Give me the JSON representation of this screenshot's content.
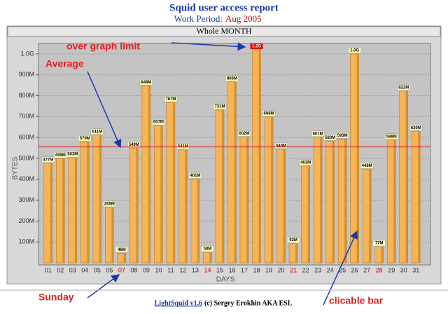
{
  "header": {
    "title": "Squid user access report",
    "period_label": "Work Period:",
    "period": "Aug 2005"
  },
  "footer": {
    "link": "LightSquid v1.6",
    "credit": "(c) Sergey Erokhin AKA ESL"
  },
  "annotations": {
    "over_limit": "over graph limit",
    "average": "Average",
    "sunday": "Sunday",
    "clickable": "clicable bar"
  },
  "chart_data": {
    "type": "bar",
    "title": "Whole MONTH",
    "x_label": "DAYS",
    "y_label": "BYTES",
    "color": "#f5b556",
    "sunday_color": "#cc0000",
    "sunday_indices": [
      6,
      13,
      20,
      27
    ],
    "average": 555,
    "average_color": "#e03030",
    "categories": [
      "01",
      "02",
      "03",
      "04",
      "05",
      "06",
      "07",
      "08",
      "09",
      "10",
      "11",
      "12",
      "13",
      "14",
      "15",
      "16",
      "17",
      "18",
      "19",
      "20",
      "21",
      "22",
      "23",
      "24",
      "25",
      "26",
      "27",
      "28",
      "29",
      "30",
      "31"
    ],
    "values": [
      477,
      499,
      503,
      579,
      611,
      265,
      46,
      549,
      848,
      657,
      767,
      541,
      401,
      50,
      731,
      866,
      602,
      1200,
      698,
      544,
      92,
      463,
      601,
      583,
      593,
      1000,
      448,
      77,
      588,
      822,
      630
    ],
    "value_labels": [
      "477M",
      "499M",
      "503M",
      "579M",
      "611M",
      "265M",
      "46M",
      "549M",
      "848M",
      "657M",
      "767M",
      "541M",
      "401M",
      "50M",
      "731M",
      "866M",
      "602M",
      "1.2G",
      "698M",
      "544M",
      "92M",
      "463M",
      "601M",
      "583M",
      "593M",
      "1.0G",
      "448M",
      "77M",
      "588M",
      "822M",
      "630M"
    ],
    "ylim": [
      0,
      1050
    ],
    "yticks": [
      {
        "value": 100,
        "label": "100M"
      },
      {
        "value": 200,
        "label": "200M"
      },
      {
        "value": 300,
        "label": "300M"
      },
      {
        "value": 400,
        "label": "400M"
      },
      {
        "value": 500,
        "label": "500M"
      },
      {
        "value": 600,
        "label": "600M"
      },
      {
        "value": 700,
        "label": "700M"
      },
      {
        "value": 800,
        "label": "800M"
      },
      {
        "value": 900,
        "label": "900M"
      },
      {
        "value": 1000,
        "label": "1.0G"
      }
    ]
  }
}
